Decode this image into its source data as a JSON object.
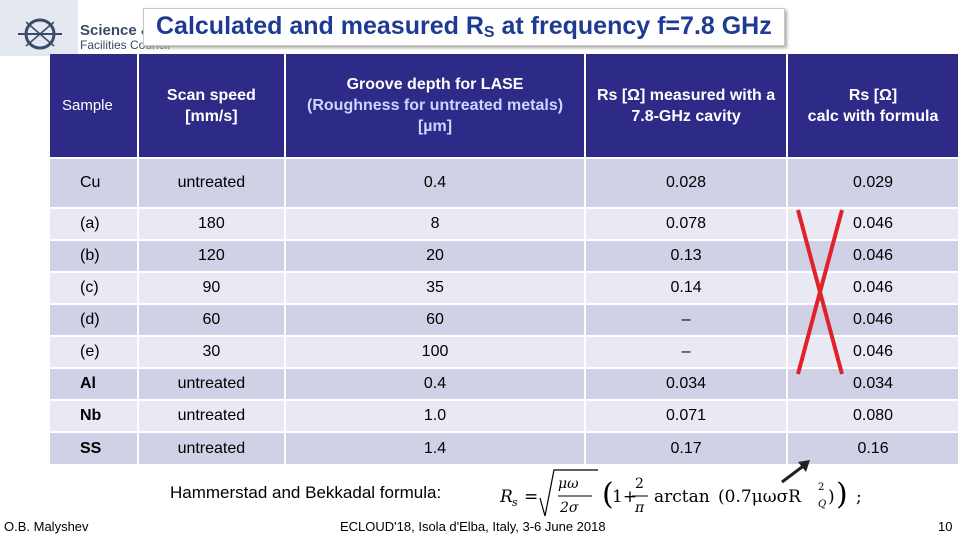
{
  "logo": {
    "line1": "Science &",
    "line2": "Facilities Council"
  },
  "title": {
    "prefix": "Calculated and measured R",
    "sub": "S",
    "suffix": " at frequency f=7.8 GHz"
  },
  "table": {
    "headers": {
      "sample": "Sample",
      "scan_speed": "Scan speed [mm/s]",
      "groove_line1": "Groove depth for LASE",
      "groove_line2": "(Roughness for untreated metals) [µm]",
      "rs_measured": "Rs [Ω] measured with a 7.8-GHz cavity",
      "rs_calc_line1": "Rs [Ω]",
      "rs_calc_line2": "calc with formula"
    },
    "rows": [
      {
        "sample": "Cu",
        "speed": "untreated",
        "groove": "0.4",
        "measured": "0.028",
        "calc": "0.029"
      },
      {
        "sample": "(a)",
        "speed": "180",
        "groove": "8",
        "measured": "0.078",
        "calc": "0.046"
      },
      {
        "sample": "(b)",
        "speed": "120",
        "groove": "20",
        "measured": "0.13",
        "calc": "0.046"
      },
      {
        "sample": "(c)",
        "speed": "90",
        "groove": "35",
        "measured": "0.14",
        "calc": "0.046"
      },
      {
        "sample": "(d)",
        "speed": "60",
        "groove": "60",
        "measured": "–",
        "calc": "0.046"
      },
      {
        "sample": "(e)",
        "speed": "30",
        "groove": "100",
        "measured": "–",
        "calc": "0.046"
      },
      {
        "sample": "Al",
        "speed": "untreated",
        "groove": "0.4",
        "measured": "0.034",
        "calc": "0.034"
      },
      {
        "sample": "Nb",
        "speed": "untreated",
        "groove": "1.0",
        "measured": "0.071",
        "calc": "0.080"
      },
      {
        "sample": "SS",
        "speed": "untreated",
        "groove": "1.4",
        "measured": "0.17",
        "calc": "0.16"
      }
    ]
  },
  "formula": {
    "label": "Hammerstad and Bekkadal formula:",
    "lhs": "R",
    "lhs_sub": "s",
    "equals": "=",
    "num_top": "μω",
    "num_bottom": "2σ",
    "one_plus": "1+",
    "frac_top": "2",
    "frac_bottom": "π",
    "arctan": "arctan",
    "arg_prefix": "(0.7μωσR",
    "arg_sub": "Q",
    "arg_sup": "2",
    "arg_suffix": ")",
    "end": ";"
  },
  "footer": {
    "author": "O.B. Malyshev",
    "event": "ECLOUD'18, Isola d'Elba, Italy, 3-6 June 2018",
    "page": "10"
  },
  "colors": {
    "header_bg": "#2e2b88",
    "title": "#1f3a93",
    "cross": "#e0202a"
  }
}
